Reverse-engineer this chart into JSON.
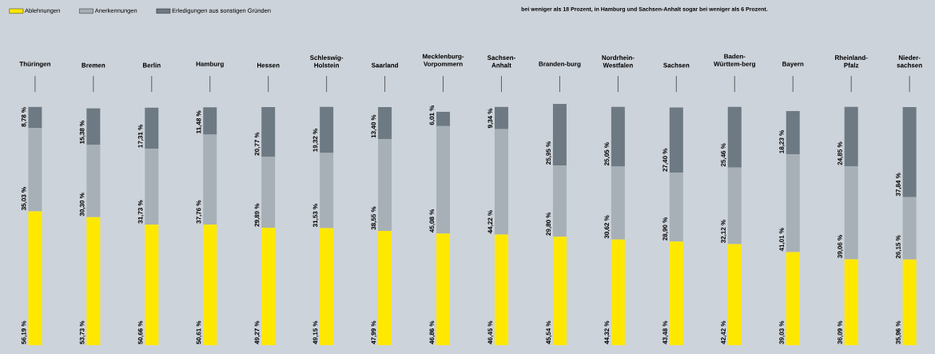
{
  "chart_data": {
    "type": "bar",
    "stacked": true,
    "legend": "top left",
    "annotations": [
      "bei weniger als 18 Prozent, in Hamburg und Sachsen-Anhalt sogar bei weniger als 6 Prozent."
    ],
    "categories": [
      "Thüringen",
      "Bremen",
      "Berlin",
      "Hamburg",
      "Hessen",
      "Schleswig-Holstein",
      "Saarland",
      "Mecklenburg-Vorpommern",
      "Sachsen-Anhalt",
      "Branden-burg",
      "Nordrhein-Westfalen",
      "Sachsen",
      "Baden-Württem-berg",
      "Bayern",
      "Rheinland-Pfalz",
      "Nieder-sachsen"
    ],
    "series": [
      {
        "name": "Ablehnungen",
        "color": "#ffe800",
        "values": [
          56.19,
          53.73,
          50.66,
          50.61,
          49.27,
          49.15,
          47.99,
          46.86,
          46.45,
          45.54,
          44.32,
          43.48,
          42.42,
          39.03,
          36.09,
          35.96
        ],
        "value_labels": [
          "56,19 %",
          "53,73 %",
          "50,66 %",
          "50,61 %",
          "49,27 %",
          "49,15 %",
          "47,99 %",
          "46,86 %",
          "46,45 %",
          "45,54 %",
          "44,32 %",
          "43,48 %",
          "42,42 %",
          "39,03 %",
          "36,09 %",
          "35,96 %"
        ]
      },
      {
        "name": "Anerkennungen",
        "color": "#a7b0b6",
        "values": [
          35.03,
          30.3,
          31.73,
          37.76,
          29.89,
          31.53,
          38.55,
          45.08,
          44.22,
          29.8,
          30.62,
          28.9,
          32.12,
          41.01,
          39.06,
          26.15
        ],
        "value_labels": [
          "35,03 %",
          "30,30 %",
          "31,73 %",
          "37,76 %",
          "29,89 %",
          "31,53 %",
          "38,55 %",
          "45,08 %",
          "44,22 %",
          "29,80 %",
          "30,62 %",
          "28,90 %",
          "32,12 %",
          "41,01 %",
          "39,06 %",
          "26,15 %"
        ]
      },
      {
        "name": "Erledigungen aus sonstigen Gründen",
        "color": "#6d7a83",
        "values": [
          8.78,
          15.38,
          17.31,
          11.48,
          20.77,
          19.32,
          13.4,
          6.01,
          9.34,
          25.95,
          25.05,
          27.4,
          25.46,
          18.23,
          24.85,
          37.84
        ],
        "value_labels": [
          "8,78 %",
          "15,38 %",
          "17,31 %",
          "11,48 %",
          "20,77 %",
          "19,32 %",
          "13,40 %",
          "6,01 %",
          "9,34 %",
          "25,95 %",
          "25,05 %",
          "27,40 %",
          "25,46 %",
          "18,23 %",
          "24,85 %",
          "37,84 %"
        ]
      }
    ]
  }
}
